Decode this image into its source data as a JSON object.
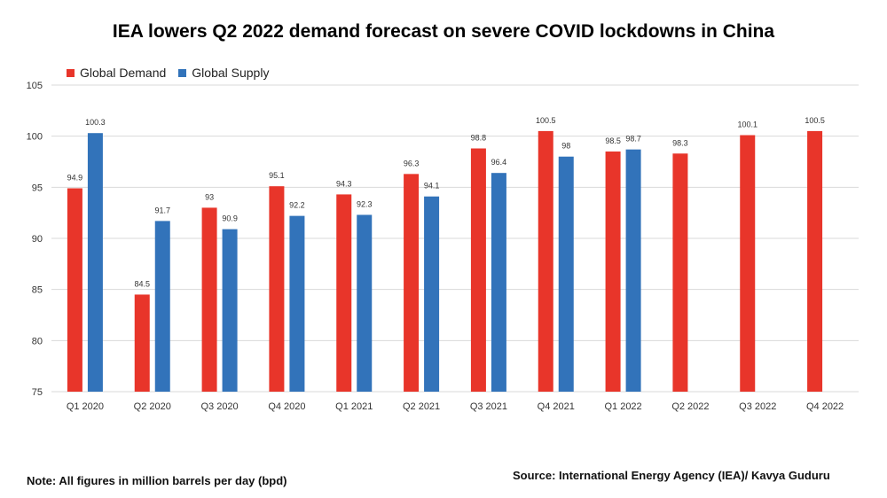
{
  "chart_data": {
    "type": "bar",
    "title": "IEA lowers Q2 2022 demand forecast on severe COVID lockdowns in China",
    "categories": [
      "Q1 2020",
      "Q2 2020",
      "Q3 2020",
      "Q4 2020",
      "Q1 2021",
      "Q2 2021",
      "Q3 2021",
      "Q4 2021",
      "Q1 2022",
      "Q2 2022",
      "Q3 2022",
      "Q4 2022"
    ],
    "series": [
      {
        "name": "Global Demand",
        "color": "#e8352a",
        "values": [
          94.9,
          84.5,
          93,
          95.1,
          94.3,
          96.3,
          98.8,
          100.5,
          98.5,
          98.3,
          100.1,
          100.5
        ]
      },
      {
        "name": "Global Supply",
        "color": "#3273ba",
        "values": [
          100.3,
          91.7,
          90.9,
          92.2,
          92.3,
          94.1,
          96.4,
          98,
          98.7,
          null,
          null,
          null
        ]
      }
    ],
    "ylim": [
      75,
      105
    ],
    "yticks": [
      75,
      80,
      85,
      90,
      95,
      100,
      105
    ],
    "grid": true,
    "legend_position": "top-left"
  },
  "footer": {
    "note": "Note: All figures in million barrels per day (bpd)",
    "source": "Source: International Energy Agency (IEA)/ Kavya Guduru"
  }
}
